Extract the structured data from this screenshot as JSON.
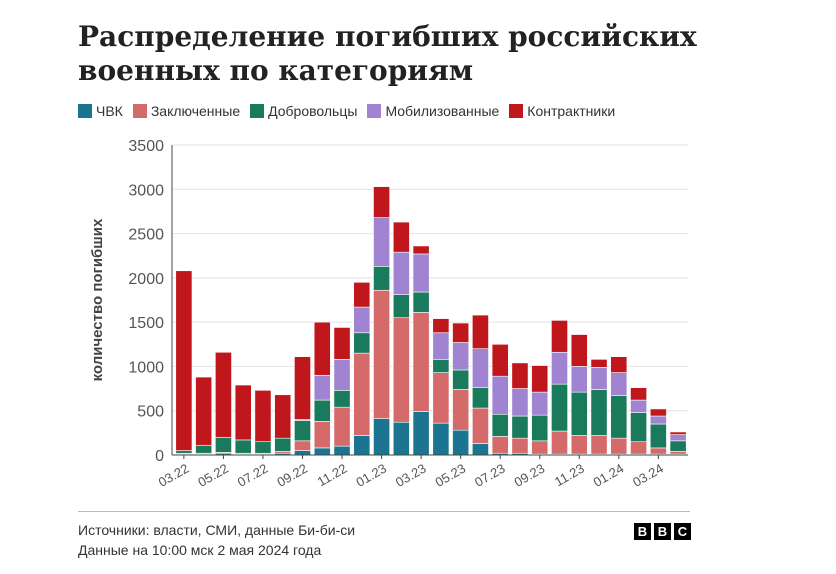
{
  "title": "Распределение погибших российских военных по категориям",
  "source_line1": "Источники: власти, СМИ, данные Би-би-си",
  "source_line2": "Данные на 10:00 мск 2 мая 2024 года",
  "logo": [
    "B",
    "B",
    "C"
  ],
  "chart_data": {
    "type": "bar",
    "stacked": true,
    "title": "Распределение погибших российских военных по категориям",
    "ylabel": "количество погибших",
    "xlabel": "",
    "ylim": [
      0,
      3500
    ],
    "yticks": [
      0,
      500,
      1000,
      1500,
      2000,
      2500,
      3000,
      3500
    ],
    "grid": true,
    "legend_position": "top-left",
    "x_tick_labels": [
      "03.22",
      "05.22",
      "07.22",
      "09.22",
      "11.22",
      "01.23",
      "03.23",
      "05.23",
      "07.23",
      "09.23",
      "11.23",
      "01.24",
      "03.24"
    ],
    "categories": [
      "03.22",
      "04.22",
      "05.22",
      "06.22",
      "07.22",
      "08.22",
      "09.22",
      "10.22",
      "11.22",
      "12.22",
      "01.23",
      "02.23",
      "03.23",
      "04.23",
      "05.23",
      "06.23",
      "07.23",
      "08.23",
      "09.23",
      "10.23",
      "11.23",
      "12.23",
      "01.24",
      "02.24",
      "03.24",
      "04.24"
    ],
    "series": [
      {
        "name": "ЧВК",
        "color": "#1b7590",
        "values": [
          10,
          10,
          20,
          10,
          10,
          20,
          50,
          80,
          100,
          220,
          410,
          370,
          490,
          360,
          280,
          130,
          20,
          20,
          10,
          10,
          10,
          10,
          10,
          10,
          10,
          10
        ]
      },
      {
        "name": "Заключенные",
        "color": "#d56a6a",
        "values": [
          10,
          10,
          10,
          10,
          10,
          20,
          110,
          300,
          440,
          930,
          1450,
          1180,
          1120,
          570,
          460,
          400,
          190,
          170,
          150,
          260,
          210,
          210,
          180,
          140,
          70,
          30
        ]
      },
      {
        "name": "Добровольцы",
        "color": "#1a7a5c",
        "values": [
          30,
          90,
          170,
          150,
          130,
          150,
          230,
          240,
          190,
          230,
          270,
          260,
          230,
          150,
          220,
          230,
          250,
          250,
          290,
          530,
          490,
          520,
          480,
          330,
          270,
          120
        ]
      },
      {
        "name": "Мобилизованные",
        "color": "#a084d1",
        "values": [
          0,
          0,
          0,
          0,
          0,
          0,
          10,
          280,
          350,
          290,
          550,
          480,
          430,
          300,
          310,
          440,
          430,
          310,
          260,
          360,
          290,
          250,
          260,
          140,
          90,
          70
        ]
      },
      {
        "name": "Контрактники",
        "color": "#c0171c",
        "values": [
          2030,
          770,
          960,
          620,
          580,
          490,
          710,
          600,
          360,
          280,
          350,
          340,
          90,
          160,
          220,
          380,
          360,
          290,
          300,
          360,
          360,
          90,
          180,
          140,
          80,
          30
        ]
      }
    ]
  }
}
